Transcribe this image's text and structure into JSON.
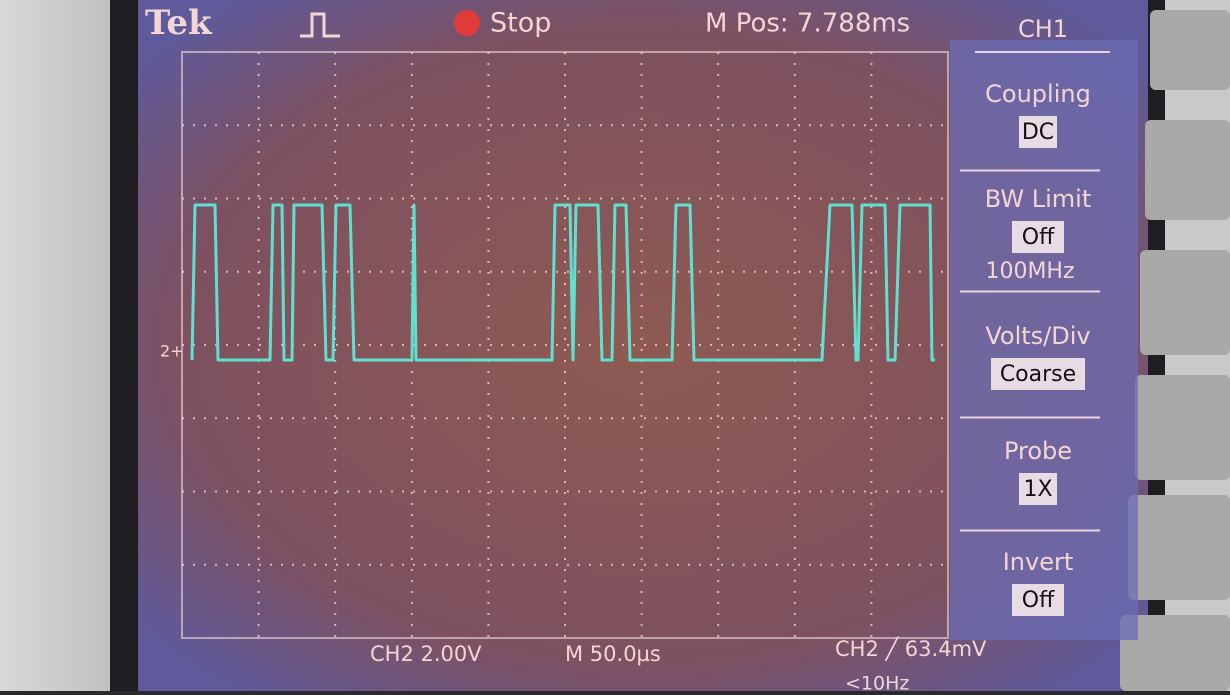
{
  "header": {
    "brand": "Tek",
    "status": "Stop",
    "m_pos": "M Pos: 7.788ms"
  },
  "menu": {
    "title": "CH1",
    "items": [
      {
        "label": "Coupling",
        "value": "DC"
      },
      {
        "label": "BW Limit",
        "value": "Off",
        "extra": "100MHz"
      },
      {
        "label": "Volts/Div",
        "value": "Coarse"
      },
      {
        "label": "Probe",
        "value": "1X"
      },
      {
        "label": "Invert",
        "value": "Off"
      }
    ]
  },
  "marker": "2+",
  "footer": {
    "ch2_scale": "CH2 2.00V",
    "timebase": "M 50.0µs",
    "trigger": "CH2 ╱ 63.4mV",
    "trigger_freq": "<10Hz"
  }
}
